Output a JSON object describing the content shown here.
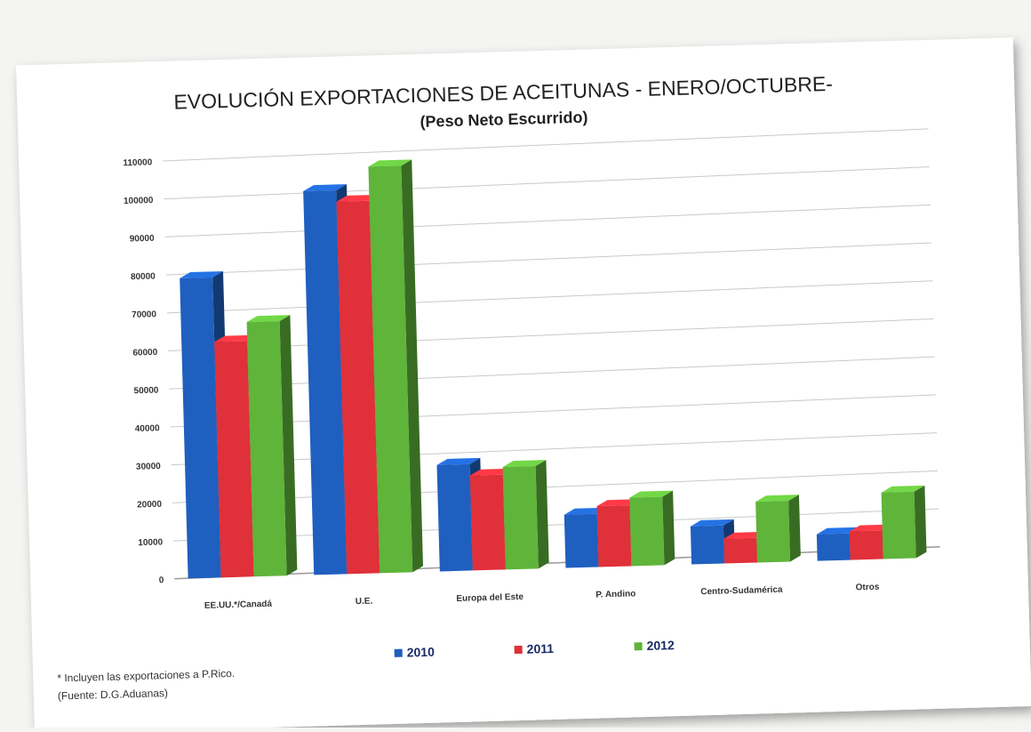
{
  "chart_data": {
    "type": "bar",
    "title": "EVOLUCIÓN  EXPORTACIONES DE ACEITUNAS - ENERO/OCTUBRE-",
    "subtitle": "(Peso Neto Escurrido)",
    "categories": [
      "EE.UU.*/Canadá",
      "U.E.",
      "Europa del Este",
      "P. Andino",
      "Centro-Sudamérica",
      "Otros"
    ],
    "series": [
      {
        "name": "2010",
        "color": "#1f5fbf",
        "values": [
          79000,
          101000,
          28000,
          14000,
          10000,
          7000
        ]
      },
      {
        "name": "2011",
        "color": "#e0303a",
        "values": [
          62000,
          98000,
          25000,
          16000,
          6500,
          7500
        ]
      },
      {
        "name": "2012",
        "color": "#5fb43a",
        "values": [
          67000,
          107000,
          27000,
          18000,
          16000,
          17500
        ]
      }
    ],
    "y_ticks": [
      "0",
      "10000",
      "20000",
      "30000",
      "40000",
      "50000",
      "60000",
      "70000",
      "80000",
      "90000",
      "100000",
      "110000"
    ],
    "ylim": [
      0,
      110000
    ],
    "grid": true,
    "legend_position": "bottom-center"
  },
  "footnotes": {
    "note": "* Incluyen las exportaciones a P.Rico.",
    "source": "(Fuente: D.G.Aduanas)"
  }
}
